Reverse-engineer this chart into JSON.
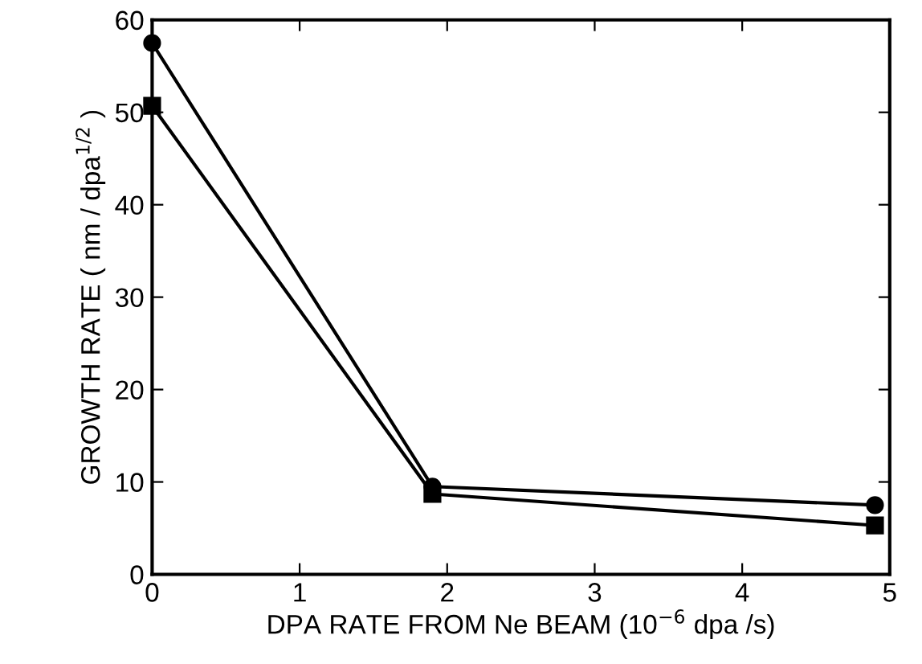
{
  "chart_data": {
    "type": "line",
    "xlabel": "DPA RATE FROM Ne BEAM (10$^{−6}$ dpa /s)",
    "ylabel": "GROWTH RATE ( nm / dpa$^{1/2}$ )",
    "xlim": [
      0,
      5
    ],
    "xticks": [
      0,
      1,
      2,
      3,
      4,
      5
    ],
    "ylim": [
      0,
      60
    ],
    "yticks": [
      0,
      10,
      20,
      30,
      40,
      50,
      60
    ],
    "grid": false,
    "legend": false,
    "line_style": "solid",
    "series": [
      {
        "color": "#000000",
        "marker": "circle",
        "x": [
          0,
          1.9,
          4.9
        ],
        "values": [
          57.5,
          9.5,
          7.5
        ]
      },
      {
        "color": "#000000",
        "marker": "square",
        "x": [
          0,
          1.9,
          4.9
        ],
        "values": [
          50.7,
          8.7,
          5.3
        ]
      }
    ]
  }
}
